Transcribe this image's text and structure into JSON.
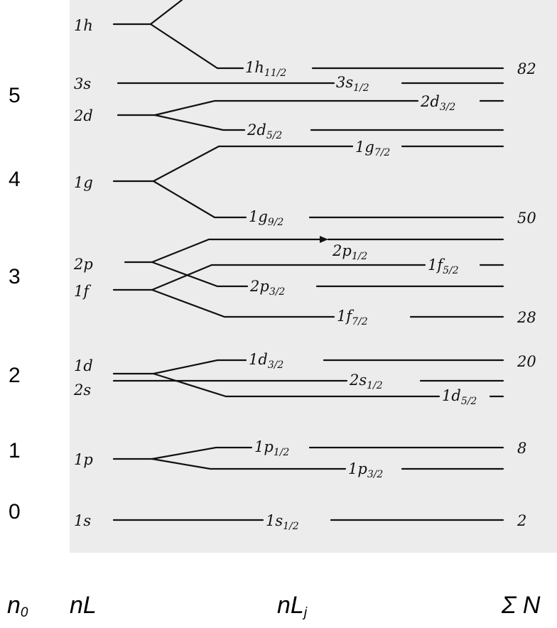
{
  "oscillator_shells": [
    "5",
    "4",
    "3",
    "2",
    "1",
    "0"
  ],
  "columns": {
    "n0": {
      "main": "n",
      "sub": "0"
    },
    "nL": "nL",
    "nLj": {
      "main": "nL",
      "sub": "j"
    },
    "sum": "Σ N"
  },
  "levels_nL": [
    "1h",
    "3s",
    "2d",
    "1g",
    "2p",
    "1f",
    "1d",
    "2s",
    "1p",
    "1s"
  ],
  "levels_nLj": [
    {
      "main": "1h",
      "frac": "11/2"
    },
    {
      "main": "3s",
      "frac": "1/2"
    },
    {
      "main": "2d",
      "frac": "3/2"
    },
    {
      "main": "2d",
      "frac": "5/2"
    },
    {
      "main": "1g",
      "frac": "7/2"
    },
    {
      "main": "1g",
      "frac": "9/2"
    },
    {
      "main": "2p",
      "frac": "1/2"
    },
    {
      "main": "1f",
      "frac": "5/2"
    },
    {
      "main": "2p",
      "frac": "3/2"
    },
    {
      "main": "1f",
      "frac": "7/2"
    },
    {
      "main": "1d",
      "frac": "3/2"
    },
    {
      "main": "2s",
      "frac": "1/2"
    },
    {
      "main": "1d",
      "frac": "5/2"
    },
    {
      "main": "1p",
      "frac": "1/2"
    },
    {
      "main": "1p",
      "frac": "3/2"
    },
    {
      "main": "1s",
      "frac": "1/2"
    }
  ],
  "magic_numbers": [
    "82",
    "50",
    "28",
    "20",
    "8",
    "2"
  ]
}
